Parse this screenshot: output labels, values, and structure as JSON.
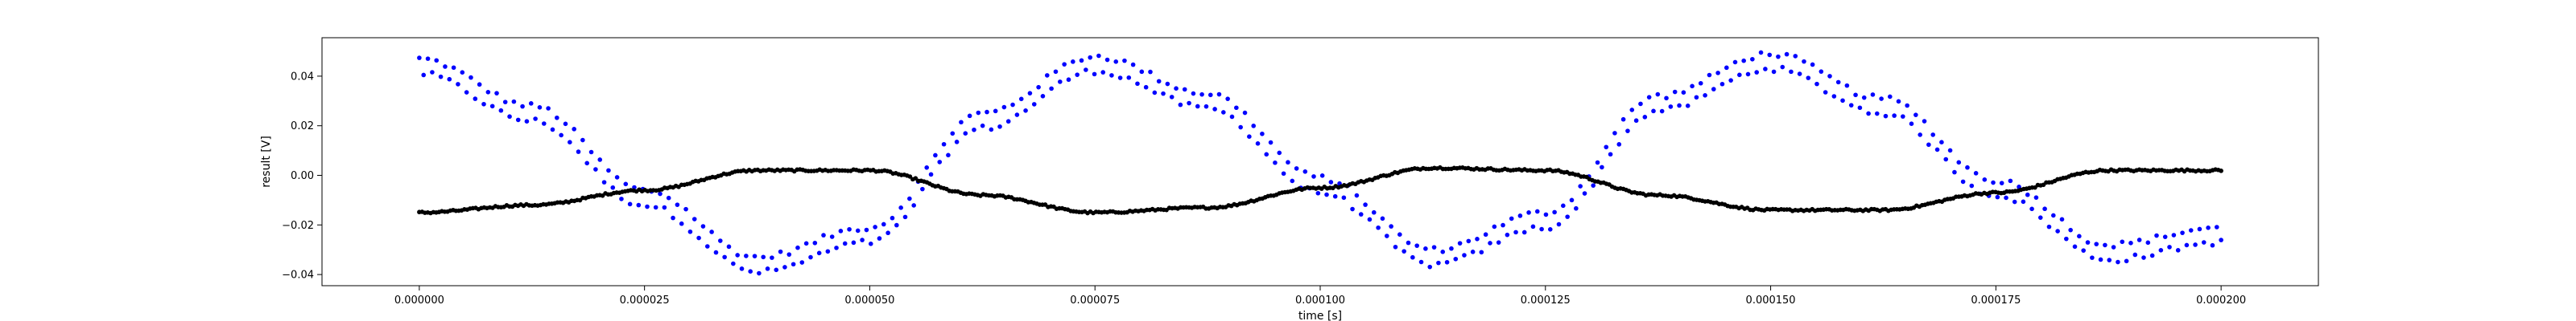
{
  "chart_data": {
    "type": "scatter",
    "xlabel": "time [s]",
    "ylabel": "result [V]",
    "xlim": [
      -1.08e-05,
      0.0002108
    ],
    "ylim": [
      -0.0445,
      0.0555
    ],
    "grid": false,
    "x_ticks": [
      0,
      2.5e-05,
      5e-05,
      7.5e-05,
      0.0001,
      0.000125,
      0.00015,
      0.000175,
      0.0002
    ],
    "x_tick_labels": [
      "0.000000",
      "0.000025",
      "0.000050",
      "0.000075",
      "0.000100",
      "0.000125",
      "0.000150",
      "0.000175",
      "0.000200"
    ],
    "y_ticks": [
      -0.04,
      -0.02,
      0.0,
      0.02,
      0.04
    ],
    "y_tick_labels": [
      "−0.04",
      "−0.02",
      "0.00",
      "0.02",
      "0.04"
    ],
    "series": [
      {
        "color": "#0000ff",
        "marker_size": 2.8,
        "sampling": {
          "x_start": 0,
          "x_end": 0.0002,
          "points": 420
        },
        "band_offsets": [
          0.003,
          -0.003
        ],
        "noise": 0.0012,
        "x": [
          0,
          1.25e-05,
          2.5e-05,
          3.75e-05,
          5e-05,
          6.25e-05,
          7.5e-05,
          8.75e-05,
          0.0001,
          0.0001125,
          0.000125,
          0.0001375,
          0.00015,
          0.0001625,
          0.000175,
          0.0001875,
          0.0002
        ],
        "y": [
          0.044,
          0.025,
          -0.009,
          -0.036,
          -0.024,
          0.022,
          0.045,
          0.03,
          -0.004,
          -0.033,
          -0.018,
          0.029,
          0.046,
          0.028,
          -0.005,
          -0.031,
          -0.024
        ]
      },
      {
        "color": "#000000",
        "marker_size": 2.8,
        "sampling": {
          "x_start": 0,
          "x_end": 0.0002,
          "points": 640
        },
        "band_offsets": [
          0
        ],
        "noise": 0.0004,
        "x": [
          0,
          1.25e-05,
          2.5e-05,
          3.75e-05,
          5e-05,
          6.25e-05,
          7.5e-05,
          8.75e-05,
          0.0001,
          0.0001125,
          0.000125,
          0.0001375,
          0.00015,
          0.0001625,
          0.000175,
          0.0001875,
          0.0002
        ],
        "y": [
          -0.015,
          -0.012,
          -0.006,
          0.002,
          0.002,
          -0.008,
          -0.015,
          -0.013,
          -0.005,
          0.003,
          0.002,
          -0.008,
          -0.014,
          -0.014,
          -0.007,
          0.002,
          0.002
        ]
      }
    ]
  }
}
